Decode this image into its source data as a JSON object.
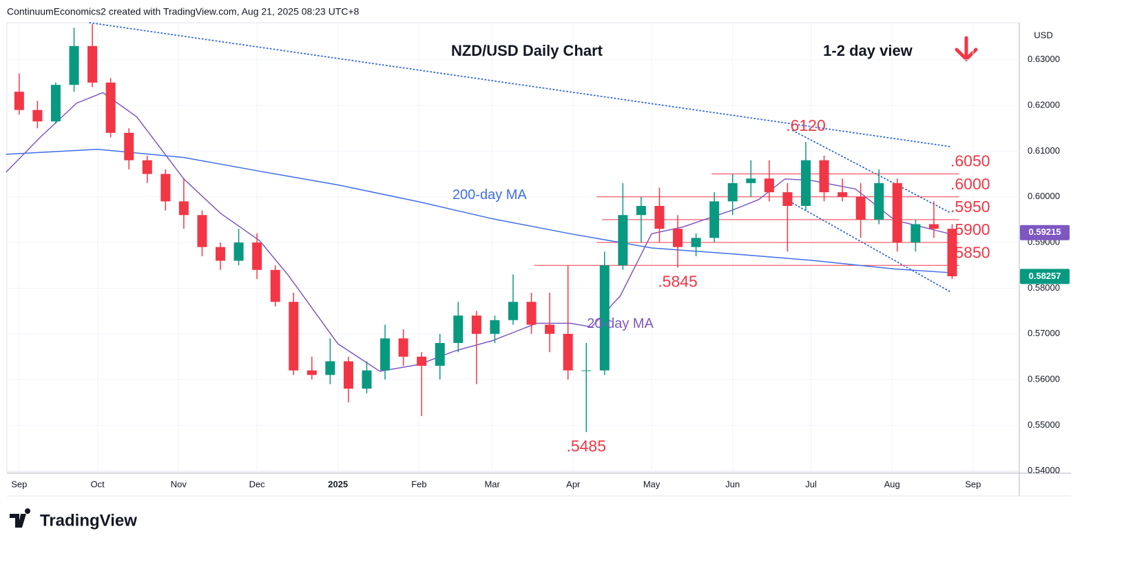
{
  "header": "ContinuumEconomics2 created with TradingView.com, Aug 21, 2025 08:23 UTC+8",
  "logo": "TradingView",
  "chart_data": {
    "type": "candlestick",
    "title": "NZD/USD Daily Chart",
    "subtitle": "1-2 day view",
    "y_axis_label": "USD",
    "xlim": [
      -4.7,
      382.7
    ],
    "ylim": [
      0.5398,
      0.6381
    ],
    "xticks": [
      {
        "value": 0,
        "label": "Sep"
      },
      {
        "value": 30,
        "label": "Oct"
      },
      {
        "value": 61,
        "label": "Nov"
      },
      {
        "value": 91,
        "label": "Dec"
      },
      {
        "value": 122,
        "label": "2025"
      },
      {
        "value": 153,
        "label": "Feb"
      },
      {
        "value": 181,
        "label": "Mar"
      },
      {
        "value": 212,
        "label": "Apr"
      },
      {
        "value": 242,
        "label": "May"
      },
      {
        "value": 273,
        "label": "Jun"
      },
      {
        "value": 303,
        "label": "Jul"
      },
      {
        "value": 334,
        "label": "Aug"
      },
      {
        "value": 365,
        "label": "Sep"
      }
    ],
    "yticks": [
      {
        "value": 0.54,
        "label": "0.54000"
      },
      {
        "value": 0.55,
        "label": "0.55000"
      },
      {
        "value": 0.56,
        "label": "0.56000"
      },
      {
        "value": 0.57,
        "label": "0.57000"
      },
      {
        "value": 0.58,
        "label": "0.58000"
      },
      {
        "value": 0.59,
        "label": "0.59000"
      },
      {
        "value": 0.6,
        "label": "0.60000"
      },
      {
        "value": 0.61,
        "label": "0.61000"
      },
      {
        "value": 0.62,
        "label": "0.62000"
      },
      {
        "value": 0.63,
        "label": "0.63000"
      }
    ],
    "grid": true,
    "up_color": "#089981",
    "down_color": "#f23645",
    "x": [
      0,
      7,
      14,
      21,
      28,
      35,
      42,
      49,
      56,
      63,
      70,
      77,
      84,
      91,
      98,
      105,
      112,
      119,
      126,
      133,
      140,
      147,
      154,
      161,
      168,
      175,
      182,
      189,
      196,
      203,
      210,
      217,
      224,
      231,
      238,
      245,
      252,
      259,
      266,
      273,
      280,
      287,
      294,
      301,
      308,
      315,
      322,
      329,
      336,
      343,
      350,
      357
    ],
    "open": [
      0.623,
      0.619,
      0.6165,
      0.6245,
      0.633,
      0.625,
      0.614,
      0.608,
      0.605,
      0.599,
      0.596,
      0.589,
      0.586,
      0.59,
      0.584,
      0.577,
      0.562,
      0.561,
      0.564,
      0.558,
      0.562,
      0.569,
      0.565,
      0.563,
      0.568,
      0.574,
      0.57,
      0.573,
      0.577,
      0.572,
      0.57,
      0.562,
      0.562,
      0.585,
      0.596,
      0.598,
      0.593,
      0.589,
      0.591,
      0.599,
      0.603,
      0.604,
      0.601,
      0.598,
      0.608,
      0.601,
      0.6,
      0.595,
      0.603,
      0.59,
      0.594,
      0.593
    ],
    "high": [
      0.627,
      0.621,
      0.625,
      0.637,
      0.6378,
      0.626,
      0.615,
      0.609,
      0.606,
      0.604,
      0.597,
      0.59,
      0.593,
      0.592,
      0.585,
      0.579,
      0.565,
      0.569,
      0.565,
      0.564,
      0.572,
      0.571,
      0.566,
      0.57,
      0.577,
      0.575,
      0.574,
      0.583,
      0.579,
      0.579,
      0.585,
      0.568,
      0.588,
      0.603,
      0.6,
      0.602,
      0.596,
      0.592,
      0.601,
      0.605,
      0.608,
      0.608,
      0.603,
      0.612,
      0.609,
      0.604,
      0.603,
      0.606,
      0.604,
      0.595,
      0.599,
      0.594
    ],
    "low": [
      0.618,
      0.615,
      0.616,
      0.623,
      0.624,
      0.613,
      0.606,
      0.603,
      0.597,
      0.593,
      0.587,
      0.584,
      0.585,
      0.582,
      0.576,
      0.561,
      0.56,
      0.559,
      0.555,
      0.557,
      0.56,
      0.563,
      0.552,
      0.56,
      0.566,
      0.559,
      0.568,
      0.572,
      0.57,
      0.566,
      0.56,
      0.5485,
      0.561,
      0.584,
      0.59,
      0.59,
      0.5845,
      0.587,
      0.59,
      0.596,
      0.6,
      0.599,
      0.588,
      0.597,
      0.599,
      0.599,
      0.591,
      0.594,
      0.588,
      0.588,
      0.591,
      0.582
    ],
    "close": [
      0.619,
      0.6165,
      0.6245,
      0.633,
      0.625,
      0.614,
      0.608,
      0.605,
      0.599,
      0.596,
      0.589,
      0.586,
      0.59,
      0.584,
      0.577,
      0.562,
      0.561,
      0.564,
      0.558,
      0.562,
      0.569,
      0.565,
      0.563,
      0.568,
      0.574,
      0.57,
      0.573,
      0.577,
      0.572,
      0.57,
      0.562,
      0.562,
      0.585,
      0.596,
      0.598,
      0.593,
      0.589,
      0.591,
      0.599,
      0.603,
      0.604,
      0.601,
      0.598,
      0.608,
      0.601,
      0.6,
      0.595,
      0.603,
      0.59,
      0.594,
      0.593,
      0.5826
    ],
    "series": [
      {
        "name": "200-day MA",
        "color": "#3d6ee8",
        "x": [
          -5,
          30,
          63,
          92,
          122,
          153,
          181,
          211,
          242,
          273,
          303,
          335,
          356
        ],
        "values": [
          0.6093,
          0.6104,
          0.6086,
          0.6056,
          0.6026,
          0.5989,
          0.5952,
          0.5919,
          0.5888,
          0.5875,
          0.5861,
          0.5842,
          0.5834
        ]
      },
      {
        "name": "20-day MA",
        "color": "#7e57c2",
        "x": [
          -5,
          8,
          22,
          32,
          45,
          63,
          77,
          92,
          103,
          122,
          138,
          153,
          167,
          181,
          198,
          211,
          219,
          230,
          242,
          254,
          273,
          283,
          293,
          303,
          320,
          335,
          356
        ],
        "values": [
          0.6054,
          0.613,
          0.6205,
          0.6228,
          0.6175,
          0.6039,
          0.5964,
          0.5904,
          0.5828,
          0.5678,
          0.5618,
          0.5633,
          0.5663,
          0.5685,
          0.5723,
          0.5723,
          0.5715,
          0.5783,
          0.5919,
          0.5934,
          0.5971,
          0.5994,
          0.6039,
          0.6036,
          0.6017,
          0.5949,
          0.5919
        ]
      }
    ],
    "levels": [
      {
        "value": 0.605,
        "label": ".6050",
        "from": 265
      },
      {
        "value": 0.6,
        "label": ".6000",
        "from": 221
      },
      {
        "value": 0.595,
        "label": ".5950",
        "from": 223
      },
      {
        "value": 0.59,
        "label": ".5900",
        "from": 221
      },
      {
        "value": 0.585,
        "label": ".5850",
        "from": 197
      }
    ],
    "annotations": [
      {
        "text": ".6120",
        "x": 301,
        "value": 0.612
      },
      {
        "text": ".5845",
        "x": 252,
        "value": 0.5845
      },
      {
        "text": ".5485",
        "x": 217,
        "value": 0.5485
      }
    ],
    "ma_labels": [
      {
        "text": "200-day MA",
        "x": 180,
        "value": 0.6003
      },
      {
        "text": "20-day MA",
        "x": 230,
        "value": 0.5721
      }
    ],
    "trendlines": [
      [
        [
          27,
          0.6381
        ],
        [
          356,
          0.611
        ]
      ],
      [
        [
          296,
          0.6145
        ],
        [
          356,
          0.5966
        ]
      ],
      [
        [
          296,
          0.5986
        ],
        [
          356,
          0.5793
        ]
      ]
    ],
    "price_tags": [
      {
        "value": 0.59215,
        "label": "0.59215",
        "color": "#7e57c2"
      },
      {
        "value": 0.58257,
        "label": "0.58257",
        "color": "#089981"
      }
    ]
  }
}
